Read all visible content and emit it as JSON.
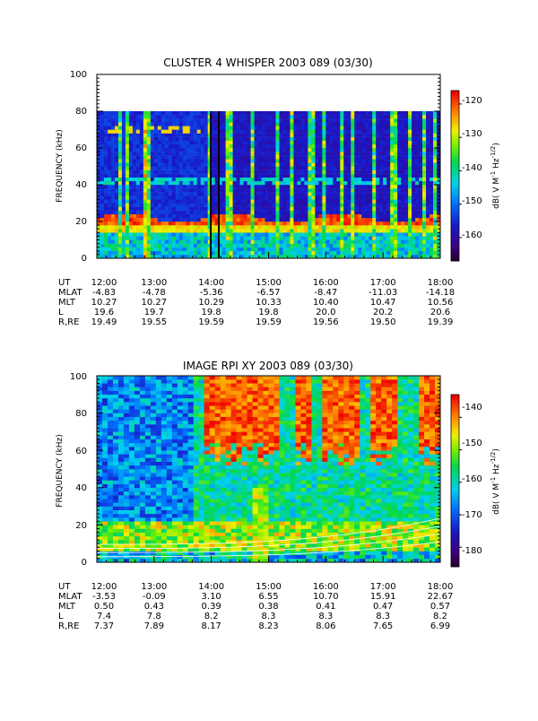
{
  "chart_data": [
    {
      "type": "heatmap",
      "title": "CLUSTER 4 WHISPER 2003 089 (03/30)",
      "ylabel": "FREQUENCY (kHz)",
      "ylim": [
        0,
        100
      ],
      "yticks": [
        "0",
        "20",
        "40",
        "60",
        "80",
        "100"
      ],
      "data_ylim": [
        0,
        80
      ],
      "colorbar": {
        "label": "dB( V M⁻¹ Hz⁻¹ᐟ²)",
        "label_parts": [
          "dB( V M",
          "-1",
          " Hz",
          "-1/2",
          ")"
        ],
        "range": [
          -167,
          -116
        ],
        "ticks": [
          "-120",
          "-130",
          "-140",
          "-150",
          "-160"
        ],
        "tick_values": [
          -120,
          -130,
          -140,
          -150,
          -160
        ]
      },
      "ephemeris": {
        "labels": [
          "UT",
          "MLAT",
          "MLT",
          "L",
          "R,RE"
        ],
        "columns": [
          [
            "12:00",
            "-4.83",
            "10.27",
            "19.6",
            "19.49"
          ],
          [
            "13:00",
            "-4.78",
            "10.27",
            "19.7",
            "19.55"
          ],
          [
            "14:00",
            "-5.36",
            "10.29",
            "19.8",
            "19.59"
          ],
          [
            "15:00",
            "-6.57",
            "10.33",
            "19.8",
            "19.59"
          ],
          [
            "16:00",
            "-8.47",
            "10.40",
            "20.0",
            "19.56"
          ],
          [
            "17:00",
            "-11.03",
            "10.47",
            "20.2",
            "19.50"
          ],
          [
            "18:00",
            "-14.18",
            "10.56",
            "20.6",
            "19.39"
          ]
        ]
      },
      "features": {
        "emission_band_khz": [
          14,
          27
        ],
        "vertical_black_lines_ut": [
          "14:00",
          "14:07"
        ]
      },
      "grid": false
    },
    {
      "type": "heatmap",
      "title": "IMAGE RPI XY 2003 089 (03/30)",
      "ylabel": "FREQUENCY (kHz)",
      "ylim": [
        0,
        100
      ],
      "yticks": [
        "0",
        "20",
        "40",
        "60",
        "80",
        "100"
      ],
      "colorbar": {
        "label": "dB( V M⁻¹ Hz⁻¹ᐟ²)",
        "label_parts": [
          "dB( V M",
          "-1",
          " Hz",
          "-1/2",
          ")"
        ],
        "range": [
          -186,
          -133
        ],
        "ticks": [
          "-140",
          "-150",
          "-160",
          "-170",
          "-180"
        ],
        "tick_values": [
          -140,
          -150,
          -160,
          -170,
          -180
        ]
      },
      "ephemeris": {
        "labels": [
          "UT",
          "MLAT",
          "MLT",
          "L",
          "R,RE"
        ],
        "columns": [
          [
            "12:00",
            "-3.53",
            "0.50",
            "7.4",
            "7.37"
          ],
          [
            "13:00",
            "-0.09",
            "0.43",
            "7.8",
            "7.89"
          ],
          [
            "14:00",
            "3.10",
            "0.39",
            "8.2",
            "8.17"
          ],
          [
            "15:00",
            "6.55",
            "0.38",
            "8.3",
            "8.23"
          ],
          [
            "16:00",
            "10.70",
            "0.41",
            "8.3",
            "8.06"
          ],
          [
            "17:00",
            "15.91",
            "0.47",
            "8.3",
            "7.65"
          ],
          [
            "18:00",
            "22.67",
            "0.57",
            "8.2",
            "6.99"
          ]
        ]
      },
      "grid": false
    }
  ]
}
